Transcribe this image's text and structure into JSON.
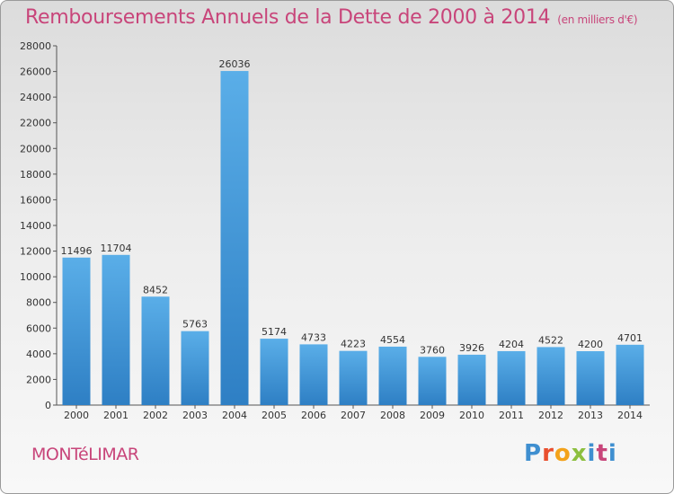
{
  "header": {
    "title": "Remboursements Annuels de la Dette de 2000 à 2014",
    "unit": "(en milliers d'€)"
  },
  "footer": {
    "city": "MONTéLIMAR",
    "logo": "Proxiti"
  },
  "colors": {
    "bar_top": "#5aaee8",
    "bar_bottom": "#2e7fc4",
    "title": "#c8457a"
  },
  "chart_data": {
    "type": "bar",
    "title": "Remboursements Annuels de la Dette de 2000 à 2014",
    "xlabel": "",
    "ylabel": "",
    "ylim": [
      0,
      28000
    ],
    "yticks": [
      0,
      2000,
      4000,
      6000,
      8000,
      10000,
      12000,
      14000,
      16000,
      18000,
      20000,
      22000,
      24000,
      26000,
      28000
    ],
    "grid": false,
    "categories": [
      "2000",
      "2001",
      "2002",
      "2003",
      "2004",
      "2005",
      "2006",
      "2007",
      "2008",
      "2009",
      "2010",
      "2011",
      "2012",
      "2013",
      "2014"
    ],
    "values": [
      11496,
      11704,
      8452,
      5763,
      26036,
      5174,
      4733,
      4223,
      4554,
      3760,
      3926,
      4204,
      4522,
      4200,
      4701
    ]
  }
}
